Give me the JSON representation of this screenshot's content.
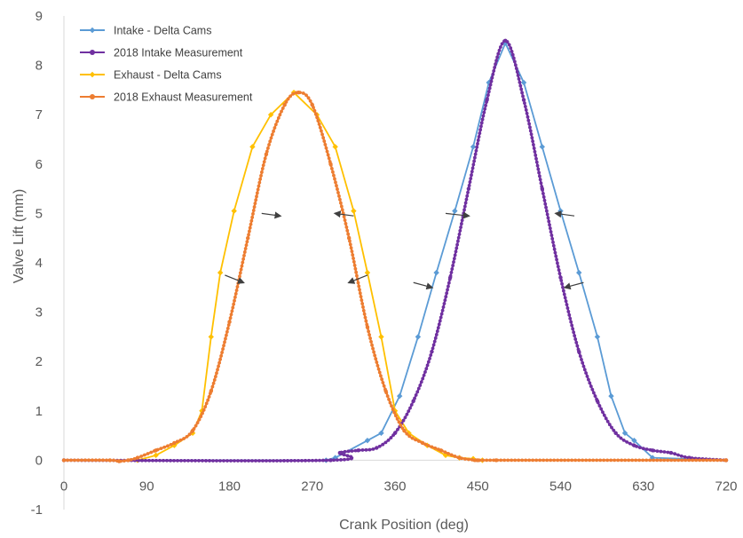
{
  "chart_data": {
    "type": "line",
    "title": "",
    "xlabel": "Crank Position (deg)",
    "ylabel": "Valve Lift (mm)",
    "xlim": [
      0,
      720
    ],
    "ylim": [
      -1,
      9
    ],
    "x_ticks": [
      0,
      90,
      180,
      270,
      360,
      450,
      540,
      630,
      720
    ],
    "y_ticks": [
      -1,
      0,
      1,
      2,
      3,
      4,
      5,
      6,
      7,
      8,
      9
    ],
    "grid": false,
    "legend_position": "top-left",
    "series": [
      {
        "name": "Intake - Delta Cams",
        "color": "#5B9BD5",
        "marker": "diamond",
        "smooth": false,
        "x": [
          0,
          285,
          295,
          330,
          345,
          365,
          385,
          405,
          425,
          445,
          462,
          480,
          500,
          520,
          540,
          560,
          580,
          595,
          610,
          620,
          640,
          720
        ],
        "y": [
          0,
          0,
          0.05,
          0.4,
          0.55,
          1.3,
          2.5,
          3.8,
          5.05,
          6.35,
          7.65,
          8.45,
          7.65,
          6.35,
          5.05,
          3.8,
          2.5,
          1.3,
          0.55,
          0.4,
          0.05,
          0
        ]
      },
      {
        "name": "2018 Intake Measurement",
        "color": "#7030A0",
        "marker": "circle",
        "smooth": true,
        "x": [
          0,
          290,
          300,
          320,
          340,
          360,
          380,
          400,
          420,
          440,
          460,
          480,
          500,
          520,
          540,
          560,
          580,
          600,
          620,
          640,
          660,
          680,
          720
        ],
        "y": [
          0,
          0,
          0.15,
          0.2,
          0.25,
          0.55,
          1.2,
          2.2,
          3.7,
          5.5,
          7.3,
          8.5,
          7.3,
          5.5,
          3.7,
          2.2,
          1.2,
          0.55,
          0.3,
          0.2,
          0.15,
          0.05,
          0
        ]
      },
      {
        "name": "Exhaust - Delta Cams",
        "color": "#FFC000",
        "marker": "diamond",
        "smooth": false,
        "x": [
          0,
          80,
          100,
          120,
          140,
          150,
          160,
          170,
          185,
          205,
          225,
          250,
          275,
          295,
          315,
          330,
          345,
          360,
          375,
          395,
          415,
          430,
          445,
          455,
          720
        ],
        "y": [
          0,
          0,
          0.1,
          0.3,
          0.55,
          1.0,
          2.5,
          3.8,
          5.05,
          6.35,
          7.0,
          7.45,
          7.0,
          6.35,
          5.05,
          3.8,
          2.5,
          1.0,
          0.55,
          0.3,
          0.1,
          0.05,
          0.03,
          0.0,
          0
        ]
      },
      {
        "name": "2018 Exhaust Measurement",
        "color": "#ED7D31",
        "marker": "circle",
        "smooth": true,
        "x": [
          0,
          50,
          60,
          70,
          80,
          100,
          120,
          140,
          160,
          180,
          200,
          220,
          240,
          255,
          270,
          290,
          310,
          330,
          350,
          370,
          390,
          410,
          430,
          450,
          470,
          720
        ],
        "y": [
          0,
          0,
          -0.02,
          0.0,
          0.05,
          0.2,
          0.35,
          0.6,
          1.4,
          2.8,
          4.5,
          6.2,
          7.2,
          7.45,
          7.2,
          6.0,
          4.5,
          2.7,
          1.4,
          0.6,
          0.35,
          0.2,
          0.05,
          0.0,
          0.0,
          0
        ]
      }
    ],
    "annotations": [
      {
        "type": "arrow",
        "from": [
          215,
          5.0
        ],
        "to": [
          235,
          4.95
        ]
      },
      {
        "type": "arrow",
        "from": [
          175,
          3.75
        ],
        "to": [
          195,
          3.6
        ]
      },
      {
        "type": "arrow",
        "from": [
          315,
          4.95
        ],
        "to": [
          295,
          5.0
        ]
      },
      {
        "type": "arrow",
        "from": [
          330,
          3.75
        ],
        "to": [
          310,
          3.6
        ]
      },
      {
        "type": "arrow",
        "from": [
          415,
          5.0
        ],
        "to": [
          440,
          4.95
        ]
      },
      {
        "type": "arrow",
        "from": [
          380,
          3.6
        ],
        "to": [
          400,
          3.5
        ]
      },
      {
        "type": "arrow",
        "from": [
          555,
          4.95
        ],
        "to": [
          535,
          5.0
        ]
      },
      {
        "type": "arrow",
        "from": [
          565,
          3.6
        ],
        "to": [
          545,
          3.5
        ]
      }
    ]
  }
}
